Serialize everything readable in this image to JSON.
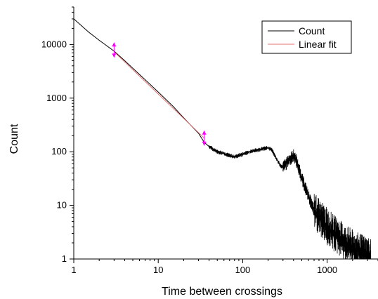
{
  "chart_data": {
    "type": "line",
    "xscale": "log",
    "yscale": "log",
    "xlim": [
      1,
      4000
    ],
    "ylim": [
      1,
      50000
    ],
    "xlabel": "Time between crossings",
    "ylabel": "Count",
    "xticks": [
      {
        "value": 1,
        "label": "1"
      },
      {
        "value": 10,
        "label": "10"
      },
      {
        "value": 100,
        "label": "100"
      },
      {
        "value": 1000,
        "label": "1000"
      }
    ],
    "yticks": [
      {
        "value": 1,
        "label": "1"
      },
      {
        "value": 10,
        "label": "10"
      },
      {
        "value": 100,
        "label": "100"
      },
      {
        "value": 1000,
        "label": "1000"
      },
      {
        "value": 10000,
        "label": "10000"
      }
    ],
    "legend_position": "top-right",
    "grid": false,
    "series": [
      {
        "name": "Count",
        "color": "#000000",
        "x": [
          1,
          1.5,
          2,
          3,
          4,
          5,
          7,
          10,
          15,
          20,
          30,
          35,
          40,
          50,
          60,
          70,
          80,
          100,
          120,
          150,
          180,
          200,
          220,
          250,
          280,
          300,
          330,
          360,
          400,
          430,
          460,
          500,
          560,
          630,
          700,
          800,
          900,
          1000,
          1100,
          1200,
          1400,
          1600,
          1800,
          2000,
          2300,
          2600,
          3000,
          3300
        ],
        "y": [
          30000,
          17000,
          12000,
          7500,
          5000,
          3600,
          2200,
          1300,
          700,
          430,
          220,
          150,
          125,
          100,
          93,
          85,
          80,
          90,
          100,
          108,
          115,
          118,
          110,
          75,
          55,
          52,
          60,
          72,
          85,
          70,
          50,
          32,
          20,
          12,
          8,
          6,
          5,
          4,
          3.5,
          3,
          2.5,
          2,
          1.8,
          1.6,
          1.4,
          1.3,
          1.2,
          1.1
        ]
      },
      {
        "name": "Linear fit",
        "color": "#e07070",
        "x": [
          3,
          35
        ],
        "y": [
          7300,
          180
        ]
      }
    ],
    "markers": [
      {
        "x": 3,
        "y": 7900,
        "color": "#ff00ff"
      },
      {
        "x": 35,
        "y": 180,
        "color": "#ff00ff"
      }
    ]
  }
}
